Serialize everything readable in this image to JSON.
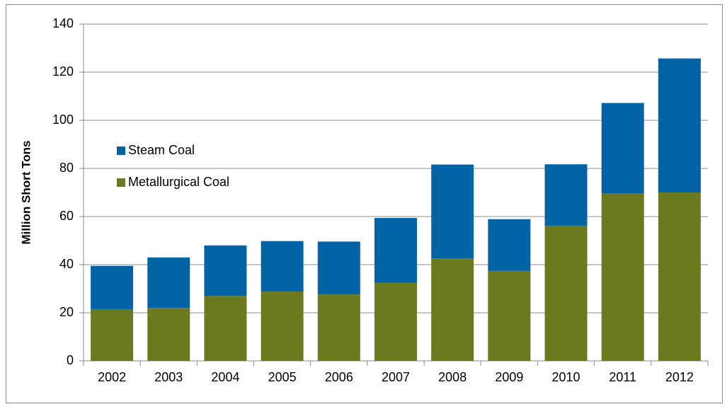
{
  "chart_data": {
    "type": "stacked_bar",
    "y_label": "Million Short Tons",
    "categories": [
      "2002",
      "2003",
      "2004",
      "2005",
      "2006",
      "2007",
      "2008",
      "2009",
      "2010",
      "2011",
      "2012"
    ],
    "series": [
      {
        "name": "Steam Coal",
        "color": "#0063a6",
        "values": [
          18,
          21,
          21,
          21,
          22,
          27,
          39,
          21.5,
          25.5,
          37.5,
          55.7
        ]
      },
      {
        "name": "Metallurgical Coal",
        "color": "#6b7a1f",
        "values": [
          21.5,
          22,
          27,
          28.8,
          27.6,
          32.4,
          42.6,
          37.4,
          56.2,
          69.7,
          70
        ]
      }
    ],
    "ylim": [
      0,
      140
    ],
    "yticks": [
      0,
      20,
      40,
      60,
      80,
      100,
      120,
      140
    ],
    "grid": true
  }
}
